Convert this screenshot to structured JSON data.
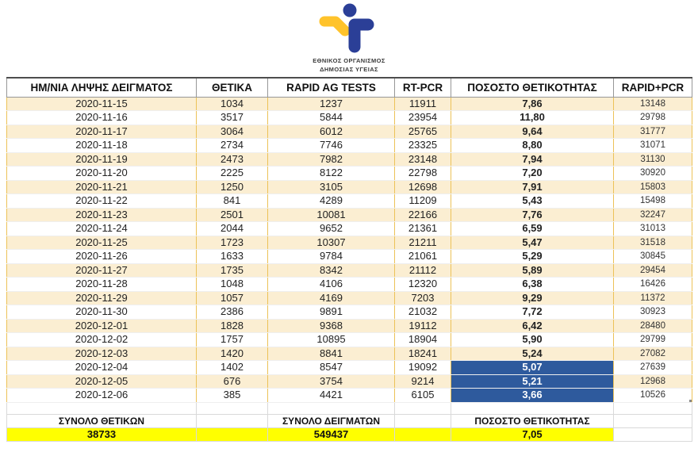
{
  "logo": {
    "icon": "eody-person-logo",
    "org_line1": "ΕΘΝΙΚΟΣ ΟΡΓΑΝΙΣΜΟΣ",
    "org_line2": "ΔΗΜΟΣΙΑΣ ΥΓΕΙΑΣ",
    "blue": "#2B3F97",
    "yellow": "#FFC32B"
  },
  "colors": {
    "stripe_beige": "#FBEED2",
    "grid_gold": "#ECC258",
    "highlight_blue": "#2E5A9D",
    "totals_yellow": "#FFFF00"
  },
  "table": {
    "headers": [
      "ΗΜ/ΝΙΑ ΛΗΨΗΣ ΔΕΙΓΜΑΤΟΣ",
      "ΘΕΤΙΚΑ",
      "RAPID AG TESTS",
      "RT-PCR",
      "ΠΟΣΟΣΤΟ ΘΕΤΙΚΟΤΗΤΑΣ",
      "RAPID+PCR"
    ],
    "rows": [
      {
        "date": "2020-11-15",
        "positives": "1034",
        "rapid_ag": "1237",
        "rt_pcr": "11911",
        "positivity": "7,86",
        "rapid_plus_pcr": "13148",
        "highlighted": false
      },
      {
        "date": "2020-11-16",
        "positives": "3517",
        "rapid_ag": "5844",
        "rt_pcr": "23954",
        "positivity": "11,80",
        "rapid_plus_pcr": "29798",
        "highlighted": false
      },
      {
        "date": "2020-11-17",
        "positives": "3064",
        "rapid_ag": "6012",
        "rt_pcr": "25765",
        "positivity": "9,64",
        "rapid_plus_pcr": "31777",
        "highlighted": false
      },
      {
        "date": "2020-11-18",
        "positives": "2734",
        "rapid_ag": "7746",
        "rt_pcr": "23325",
        "positivity": "8,80",
        "rapid_plus_pcr": "31071",
        "highlighted": false
      },
      {
        "date": "2020-11-19",
        "positives": "2473",
        "rapid_ag": "7982",
        "rt_pcr": "23148",
        "positivity": "7,94",
        "rapid_plus_pcr": "31130",
        "highlighted": false
      },
      {
        "date": "2020-11-20",
        "positives": "2225",
        "rapid_ag": "8122",
        "rt_pcr": "22798",
        "positivity": "7,20",
        "rapid_plus_pcr": "30920",
        "highlighted": false
      },
      {
        "date": "2020-11-21",
        "positives": "1250",
        "rapid_ag": "3105",
        "rt_pcr": "12698",
        "positivity": "7,91",
        "rapid_plus_pcr": "15803",
        "highlighted": false
      },
      {
        "date": "2020-11-22",
        "positives": "841",
        "rapid_ag": "4289",
        "rt_pcr": "11209",
        "positivity": "5,43",
        "rapid_plus_pcr": "15498",
        "highlighted": false
      },
      {
        "date": "2020-11-23",
        "positives": "2501",
        "rapid_ag": "10081",
        "rt_pcr": "22166",
        "positivity": "7,76",
        "rapid_plus_pcr": "32247",
        "highlighted": false
      },
      {
        "date": "2020-11-24",
        "positives": "2044",
        "rapid_ag": "9652",
        "rt_pcr": "21361",
        "positivity": "6,59",
        "rapid_plus_pcr": "31013",
        "highlighted": false
      },
      {
        "date": "2020-11-25",
        "positives": "1723",
        "rapid_ag": "10307",
        "rt_pcr": "21211",
        "positivity": "5,47",
        "rapid_plus_pcr": "31518",
        "highlighted": false
      },
      {
        "date": "2020-11-26",
        "positives": "1633",
        "rapid_ag": "9784",
        "rt_pcr": "21061",
        "positivity": "5,29",
        "rapid_plus_pcr": "30845",
        "highlighted": false
      },
      {
        "date": "2020-11-27",
        "positives": "1735",
        "rapid_ag": "8342",
        "rt_pcr": "21112",
        "positivity": "5,89",
        "rapid_plus_pcr": "29454",
        "highlighted": false
      },
      {
        "date": "2020-11-28",
        "positives": "1048",
        "rapid_ag": "4106",
        "rt_pcr": "12320",
        "positivity": "6,38",
        "rapid_plus_pcr": "16426",
        "highlighted": false
      },
      {
        "date": "2020-11-29",
        "positives": "1057",
        "rapid_ag": "4169",
        "rt_pcr": "7203",
        "positivity": "9,29",
        "rapid_plus_pcr": "11372",
        "highlighted": false
      },
      {
        "date": "2020-11-30",
        "positives": "2386",
        "rapid_ag": "9891",
        "rt_pcr": "21032",
        "positivity": "7,72",
        "rapid_plus_pcr": "30923",
        "highlighted": false
      },
      {
        "date": "2020-12-01",
        "positives": "1828",
        "rapid_ag": "9368",
        "rt_pcr": "19112",
        "positivity": "6,42",
        "rapid_plus_pcr": "28480",
        "highlighted": false
      },
      {
        "date": "2020-12-02",
        "positives": "1757",
        "rapid_ag": "10895",
        "rt_pcr": "18904",
        "positivity": "5,90",
        "rapid_plus_pcr": "29799",
        "highlighted": false
      },
      {
        "date": "2020-12-03",
        "positives": "1420",
        "rapid_ag": "8841",
        "rt_pcr": "18241",
        "positivity": "5,24",
        "rapid_plus_pcr": "27082",
        "highlighted": false
      },
      {
        "date": "2020-12-04",
        "positives": "1402",
        "rapid_ag": "8547",
        "rt_pcr": "19092",
        "positivity": "5,07",
        "rapid_plus_pcr": "27639",
        "highlighted": true
      },
      {
        "date": "2020-12-05",
        "positives": "676",
        "rapid_ag": "3754",
        "rt_pcr": "9214",
        "positivity": "5,21",
        "rapid_plus_pcr": "12968",
        "highlighted": true
      },
      {
        "date": "2020-12-06",
        "positives": "385",
        "rapid_ag": "4421",
        "rt_pcr": "6105",
        "positivity": "3,66",
        "rapid_plus_pcr": "10526",
        "highlighted": true
      }
    ]
  },
  "totals": {
    "positives_label": "ΣΥΝΟΛΟ ΘΕΤΙΚΩΝ",
    "positives_value": "38733",
    "samples_label": "ΣΥΝΟΛΟ ΔΕΙΓΜΑΤΩΝ",
    "samples_value": "549437",
    "positivity_label": "ΠΟΣΟΣΤΟ ΘΕΤΙΚΟΤΗΤΑΣ",
    "positivity_value": "7,05"
  }
}
